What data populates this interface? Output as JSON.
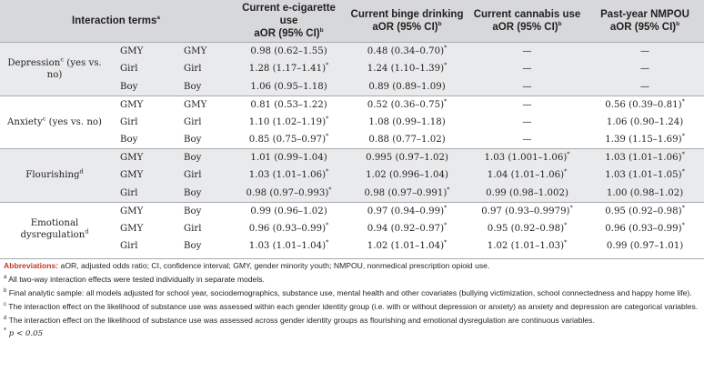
{
  "header": {
    "terms_label": "Interaction terms",
    "terms_sup": "a",
    "columns": [
      {
        "title": "Current e-cigarette use",
        "sub": "aOR (95% CI)",
        "sup": "b"
      },
      {
        "title": "Current binge drinking",
        "sub": "aOR (95% CI)",
        "sup": "b"
      },
      {
        "title": "Current cannabis use",
        "sub": "aOR (95% CI)",
        "sup": "b"
      },
      {
        "title": "Past-year NMPOU",
        "sub": "aOR (95% CI)",
        "sup": "b"
      }
    ]
  },
  "groups": [
    {
      "label": "Depression",
      "label_sup": "c",
      "label_suffix": " (yes vs. no)",
      "rows": [
        {
          "g1": "GMY",
          "g2": "GMY",
          "v": [
            "0.98 (0.62–1.55)",
            "0.48 (0.34–0.70)",
            "—",
            "—"
          ],
          "s": [
            "",
            "*",
            "",
            ""
          ]
        },
        {
          "g1": "Girl",
          "g2": "Girl",
          "v": [
            "1.28 (1.17–1.41)",
            "1.24 (1.10–1.39)",
            "—",
            "—"
          ],
          "s": [
            "*",
            "*",
            "",
            ""
          ]
        },
        {
          "g1": "Boy",
          "g2": "Boy",
          "v": [
            "1.06 (0.95–1.18)",
            "0.89 (0.89–1.09)",
            "—",
            "—"
          ],
          "s": [
            "",
            "",
            "",
            ""
          ]
        }
      ]
    },
    {
      "label": "Anxiety",
      "label_sup": "c",
      "label_suffix": " (yes vs. no)",
      "rows": [
        {
          "g1": "GMY",
          "g2": "GMY",
          "v": [
            "0.81 (0.53–1.22)",
            "0.52 (0.36–0.75)",
            "—",
            "0.56 (0.39–0.81)"
          ],
          "s": [
            "",
            "*",
            "",
            "*"
          ]
        },
        {
          "g1": "Girl",
          "g2": "Girl",
          "v": [
            "1.10 (1.02–1.19)",
            "1.08 (0.99–1.18)",
            "—",
            "1.06 (0.90–1.24)"
          ],
          "s": [
            "*",
            "",
            "",
            ""
          ]
        },
        {
          "g1": "Boy",
          "g2": "Boy",
          "v": [
            "0.85 (0.75–0.97)",
            "0.88 (0.77–1.02)",
            "—",
            "1.39 (1.15–1.69)"
          ],
          "s": [
            "*",
            "",
            "",
            "*"
          ]
        }
      ]
    },
    {
      "label": "Flourishing",
      "label_sup": "d",
      "label_suffix": "",
      "rows": [
        {
          "g1": "GMY",
          "g2": "Boy",
          "v": [
            "1.01 (0.99–1.04)",
            "0.995 (0.97–1.02)",
            "1.03 (1.001–1.06)",
            "1.03 (1.01–1.06)"
          ],
          "s": [
            "",
            "",
            "*",
            "*"
          ]
        },
        {
          "g1": "GMY",
          "g2": "Girl",
          "v": [
            "1.03 (1.01–1.06)",
            "1.02 (0.996–1.04)",
            "1.04 (1.01–1.06)",
            "1.03 (1.01–1.05)"
          ],
          "s": [
            "*",
            "",
            "*",
            "*"
          ]
        },
        {
          "g1": "Girl",
          "g2": "Boy",
          "v": [
            "0.98 (0.97–0.993)",
            "0.98 (0.97–0.991)",
            "0.99 (0.98–1.002)",
            "1.00 (0.98–1.02)"
          ],
          "s": [
            "*",
            "*",
            "",
            ""
          ]
        }
      ]
    },
    {
      "label": "Emotional dysregulation",
      "label_sup": "d",
      "label_suffix": "",
      "rows": [
        {
          "g1": "GMY",
          "g2": "Boy",
          "v": [
            "0.99 (0.96–1.02)",
            "0.97 (0.94–0.99)",
            "0.97 (0.93–0.9979)",
            "0.95 (0.92–0.98)"
          ],
          "s": [
            "",
            "*",
            "*",
            "*"
          ]
        },
        {
          "g1": "GMY",
          "g2": "Girl",
          "v": [
            "0.96 (0.93–0.99)",
            "0.94 (0.92–0.97)",
            "0.95 (0.92–0.98)",
            "0.96 (0.93–0.99)"
          ],
          "s": [
            "*",
            "*",
            "*",
            "*"
          ]
        },
        {
          "g1": "Girl",
          "g2": "Boy",
          "v": [
            "1.03 (1.01–1.04)",
            "1.02 (1.01–1.04)",
            "1.02 (1.01–1.03)",
            "0.99 (0.97–1.01)"
          ],
          "s": [
            "*",
            "*",
            "*",
            ""
          ]
        }
      ]
    }
  ],
  "notes": {
    "abbrev_lead": "Abbreviations:",
    "abbrev_text": " aOR, adjusted odds ratio; CI, confidence interval; GMY, gender minority youth; NMPOU, nonmedical prescription opioid use.",
    "a_mark": "a",
    "a_text": "All two-way interaction effects were tested individually in separate models.",
    "b_mark": "b",
    "b_text": "Final analytic sample: all models adjusted for school year, sociodemographics, substance use, mental health and other covariates (bullying victimization, school connectedness and happy home life).",
    "c_mark": "c",
    "c_text": "The interaction effect on the likelihood of substance use was assessed within each gender identity group (i.e. with or without depression or anxiety) as anxiety and depression are categorical variables.",
    "d_mark": "d",
    "d_text": "The interaction effect on the likelihood of substance use was assessed across gender identity groups as flourishing and emotional dysregulation are continuous variables.",
    "p_mark": "*",
    "p_text": " p < 0.05"
  }
}
